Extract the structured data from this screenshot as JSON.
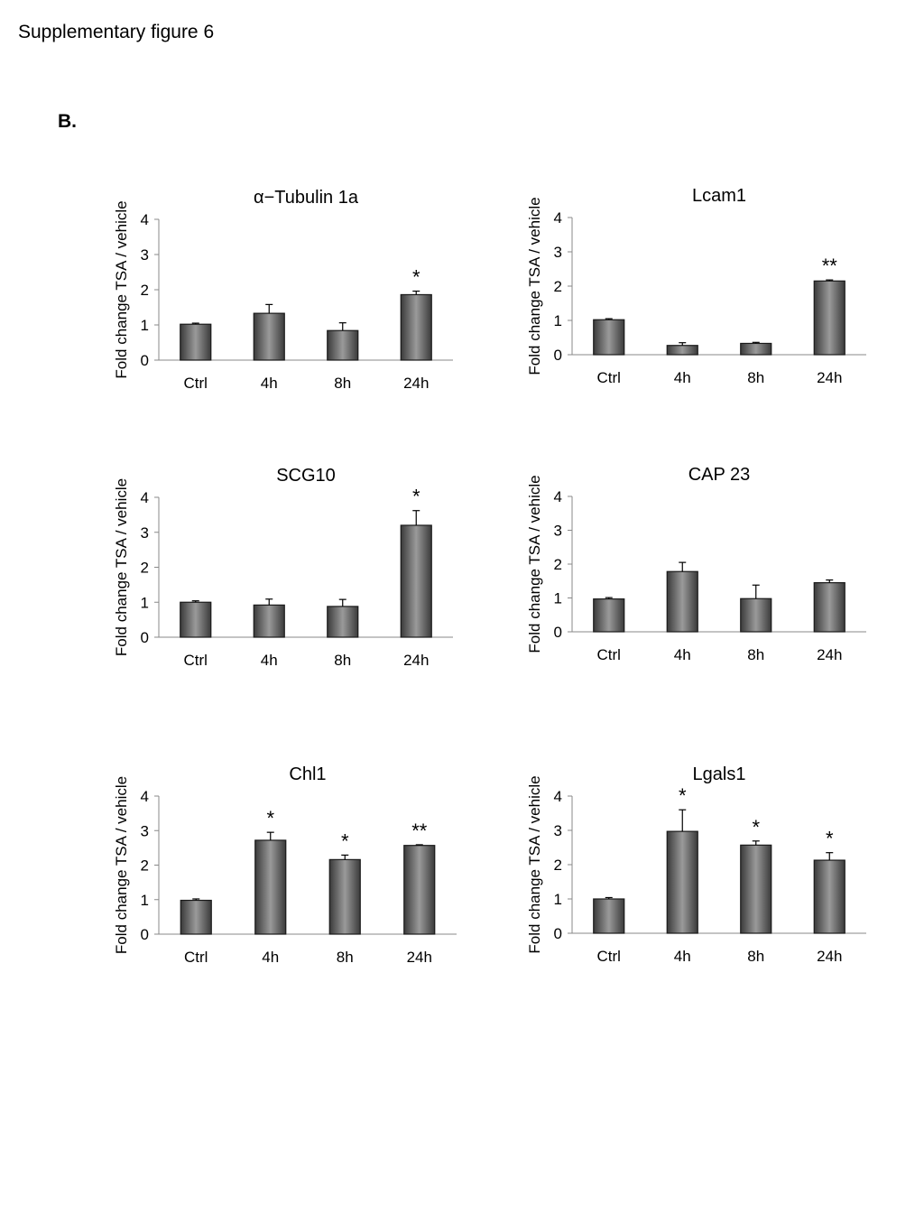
{
  "page": {
    "title": "Supplementary figure 6",
    "panel_label": "B."
  },
  "colors": {
    "bar_edge": "#1a1a1a",
    "bar_light": "#9a9a9a",
    "bar_dark": "#3a3a3a",
    "axis": "#888888"
  },
  "chart_data": [
    {
      "type": "bar",
      "title": "α−Tubulin 1a",
      "ylabel": "Fold change  TSA / vehicle",
      "xlabel": "",
      "categories": [
        "Ctrl",
        "4h",
        "8h",
        "24h"
      ],
      "yticks": [
        "0",
        "1",
        "2",
        "3",
        "4"
      ],
      "ylim": [
        0,
        4
      ],
      "values": [
        1.02,
        1.33,
        0.84,
        1.86
      ],
      "errors": [
        0.03,
        0.25,
        0.22,
        0.1
      ],
      "significance": [
        "",
        "",
        "",
        "*"
      ],
      "grid": false
    },
    {
      "type": "bar",
      "title": "Lcam1",
      "ylabel": "Fold change  TSA / vehicle",
      "xlabel": "",
      "categories": [
        "Ctrl",
        "4h",
        "8h",
        "24h"
      ],
      "yticks": [
        "0",
        "1",
        "2",
        "3",
        "4"
      ],
      "ylim": [
        0,
        4
      ],
      "values": [
        1.02,
        0.27,
        0.33,
        2.15
      ],
      "errors": [
        0.03,
        0.08,
        0.03,
        0.03
      ],
      "significance": [
        "",
        "",
        "",
        "**"
      ],
      "grid": false
    },
    {
      "type": "bar",
      "title": "SCG10",
      "ylabel": "Fold change  TSA / vehicle",
      "xlabel": "",
      "categories": [
        "Ctrl",
        "4h",
        "8h",
        "24h"
      ],
      "yticks": [
        "0",
        "1",
        "2",
        "3",
        "4"
      ],
      "ylim": [
        0,
        4
      ],
      "values": [
        1.0,
        0.92,
        0.88,
        3.2
      ],
      "errors": [
        0.04,
        0.17,
        0.2,
        0.42
      ],
      "significance": [
        "",
        "",
        "",
        "*"
      ],
      "grid": false
    },
    {
      "type": "bar",
      "title": "CAP 23",
      "ylabel": "Fold change  TSA / vehicle",
      "xlabel": "",
      "categories": [
        "Ctrl",
        "4h",
        "8h",
        "24h"
      ],
      "yticks": [
        "0",
        "1",
        "2",
        "3",
        "4"
      ],
      "ylim": [
        0,
        4
      ],
      "values": [
        0.97,
        1.78,
        0.98,
        1.45
      ],
      "errors": [
        0.04,
        0.27,
        0.4,
        0.08
      ],
      "significance": [
        "",
        "",
        "",
        ""
      ],
      "grid": false
    },
    {
      "type": "bar",
      "title": "Chl1",
      "ylabel": "Fold change  TSA / vehicle",
      "xlabel": "",
      "categories": [
        "Ctrl",
        "4h",
        "8h",
        "24h"
      ],
      "yticks": [
        "0",
        "1",
        "2",
        "3",
        "4"
      ],
      "ylim": [
        0,
        4
      ],
      "values": [
        0.98,
        2.72,
        2.16,
        2.57
      ],
      "errors": [
        0.04,
        0.23,
        0.13,
        0.02
      ],
      "significance": [
        "",
        "*",
        "*",
        "**"
      ],
      "grid": false
    },
    {
      "type": "bar",
      "title": "Lgals1",
      "ylabel": "Fold change  TSA / vehicle",
      "xlabel": "",
      "categories": [
        "Ctrl",
        "4h",
        "8h",
        "24h"
      ],
      "yticks": [
        "0",
        "1",
        "2",
        "3",
        "4"
      ],
      "ylim": [
        0,
        4
      ],
      "values": [
        1.0,
        2.97,
        2.57,
        2.13
      ],
      "errors": [
        0.04,
        0.63,
        0.12,
        0.22
      ],
      "significance": [
        "",
        "*",
        "*",
        "*"
      ],
      "grid": false
    }
  ]
}
